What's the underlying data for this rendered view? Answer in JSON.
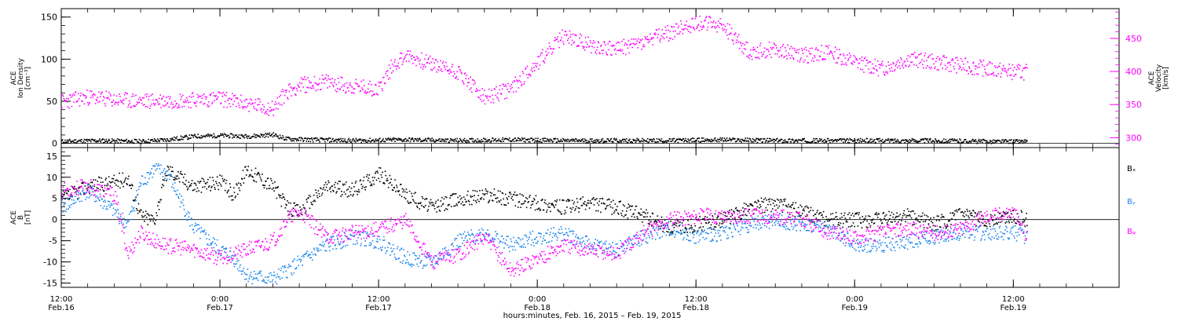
{
  "colors": {
    "black": "#000000",
    "magenta": "#ff00ff",
    "blue": "#1c86ee"
  },
  "xlabel": "hours:minutes, Feb. 16, 2015 – Feb. 19, 2015",
  "chart_data": [
    {
      "type": "scatter",
      "panel": "top",
      "xlim_hours": [
        0,
        80
      ],
      "x_ticks": [
        {
          "h": 0,
          "time": "12:00",
          "date": "Feb.16"
        },
        {
          "h": 12,
          "time": "0:00",
          "date": "Feb.17"
        },
        {
          "h": 24,
          "time": "12:00",
          "date": "Feb.17"
        },
        {
          "h": 36,
          "time": "0:00",
          "date": "Feb.18"
        },
        {
          "h": 48,
          "time": "12:00",
          "date": "Feb.18"
        },
        {
          "h": 60,
          "time": "0:00",
          "date": "Feb.19"
        },
        {
          "h": 72,
          "time": "12:00",
          "date": "Feb.19"
        }
      ],
      "left_axis": {
        "label_lines": [
          "ACE",
          "Ion Density",
          "[cm⁻³]"
        ],
        "ylim": [
          -5,
          160
        ],
        "ticks": [
          0,
          50,
          100,
          150
        ]
      },
      "right_axis": {
        "label_lines": [
          "ACE",
          "Velocity",
          "[km/s]"
        ],
        "ylim": [
          285,
          495
        ],
        "ticks": [
          300,
          350,
          400,
          450
        ]
      },
      "series": [
        {
          "name": "",
          "axis": "left",
          "color": "#000000",
          "x": [
            0,
            3,
            6,
            8,
            10,
            12,
            14,
            16,
            17,
            19,
            22,
            26,
            30,
            34,
            38,
            42,
            46,
            50,
            54,
            58,
            62,
            66,
            70,
            73
          ],
          "y": [
            3,
            4,
            3,
            5,
            9,
            10,
            9,
            11,
            6,
            5,
            4,
            5,
            4,
            5,
            4,
            4,
            4,
            5,
            4,
            4,
            4,
            4,
            3,
            3
          ]
        },
        {
          "name": "",
          "axis": "right",
          "color": "#ff00ff",
          "x": [
            0,
            2,
            4,
            6,
            8,
            10,
            12,
            14,
            16,
            17,
            18,
            20,
            22,
            24,
            25,
            26,
            28,
            30,
            32,
            34,
            36,
            38,
            40,
            42,
            44,
            46,
            48,
            50,
            52,
            54,
            56,
            58,
            60,
            62,
            64,
            66,
            68,
            70,
            72,
            73
          ],
          "y": [
            355,
            362,
            358,
            356,
            357,
            358,
            360,
            352,
            345,
            370,
            380,
            385,
            378,
            375,
            410,
            425,
            412,
            400,
            360,
            375,
            415,
            455,
            440,
            435,
            445,
            460,
            475,
            470,
            430,
            435,
            425,
            430,
            415,
            405,
            420,
            415,
            410,
            405,
            400,
            400
          ]
        }
      ]
    },
    {
      "type": "scatter",
      "panel": "bottom",
      "xlim_hours": [
        0,
        80
      ],
      "left_axis": {
        "label_lines": [
          "ACE",
          "B",
          "[nT]"
        ],
        "ylim": [
          -16,
          17
        ],
        "ticks": [
          -15,
          -10,
          -5,
          0,
          5,
          10,
          15
        ]
      },
      "legend_placement": "right",
      "series": [
        {
          "name": "Bₓ",
          "color": "#000000",
          "x": [
            0,
            2,
            4,
            5,
            6,
            7,
            8,
            10,
            12,
            13,
            14,
            16,
            17,
            18,
            20,
            22,
            24,
            26,
            28,
            30,
            32,
            34,
            36,
            38,
            40,
            42,
            44,
            46,
            48,
            50,
            52,
            54,
            56,
            58,
            60,
            62,
            64,
            66,
            68,
            70,
            72,
            73
          ],
          "y": [
            5,
            8,
            9,
            10,
            1,
            0,
            12,
            8,
            9,
            6,
            12,
            8,
            3,
            2,
            8,
            7,
            11,
            6,
            3,
            5,
            6,
            5,
            4,
            3,
            4,
            3,
            1,
            -2,
            -1,
            0,
            3,
            4,
            2,
            0,
            0,
            0,
            1,
            -1,
            1,
            0,
            1,
            0
          ]
        },
        {
          "name": "Bᵧ",
          "color": "#1c86ee",
          "x": [
            0,
            2,
            4,
            5,
            6,
            7,
            8,
            10,
            12,
            13,
            14,
            16,
            17,
            18,
            20,
            22,
            24,
            26,
            28,
            30,
            32,
            34,
            36,
            38,
            40,
            42,
            44,
            46,
            48,
            50,
            52,
            54,
            56,
            58,
            60,
            62,
            64,
            66,
            68,
            70,
            72,
            73
          ],
          "y": [
            3,
            7,
            2,
            -1,
            9,
            12,
            11,
            -2,
            -7,
            -9,
            -13,
            -14,
            -12,
            -10,
            -6,
            -4,
            -5,
            -9,
            -10,
            -5,
            -3,
            -6,
            -4,
            -3,
            -6,
            -7,
            -4,
            -2,
            -4,
            -3,
            -1,
            0,
            -1,
            -2,
            -6,
            -6,
            -5,
            -4,
            -3,
            -3,
            -3,
            -4
          ]
        },
        {
          "name": "Bᵩ",
          "color": "#ff00ff",
          "x": [
            0,
            2,
            4,
            5,
            6,
            7,
            8,
            10,
            12,
            13,
            14,
            16,
            17,
            18,
            20,
            22,
            24,
            26,
            28,
            30,
            32,
            34,
            36,
            38,
            40,
            42,
            44,
            46,
            48,
            50,
            52,
            54,
            56,
            58,
            60,
            62,
            64,
            66,
            68,
            70,
            72,
            73
          ],
          "y": [
            7,
            8,
            6,
            -8,
            -3,
            -5,
            -6,
            -7,
            -9,
            -8,
            -7,
            -5,
            0,
            2,
            -4,
            -3,
            -2,
            0,
            -10,
            -8,
            -4,
            -12,
            -9,
            -6,
            -7,
            -8,
            -3,
            0,
            1,
            1,
            1,
            1,
            0,
            -3,
            -4,
            -3,
            -2,
            -3,
            -2,
            1,
            2,
            -4
          ]
        }
      ]
    }
  ]
}
